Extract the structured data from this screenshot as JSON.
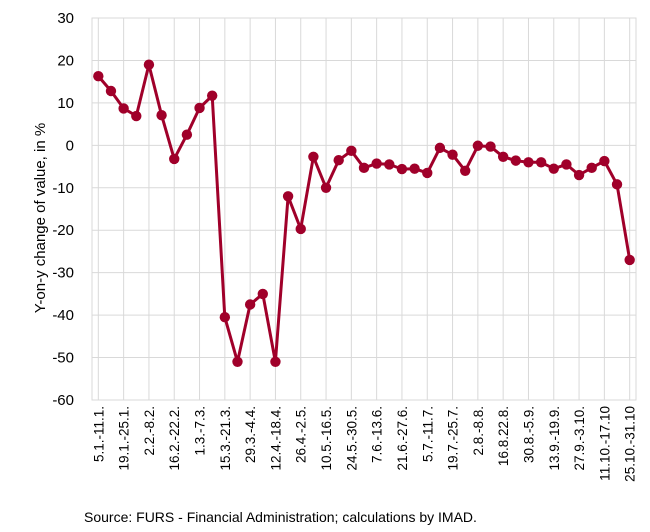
{
  "chart_data": {
    "type": "line",
    "ylabel": "Y-on-y change of value, in %",
    "ylim": [
      -60,
      30
    ],
    "yticks": [
      30,
      20,
      10,
      0,
      -10,
      -20,
      -30,
      -40,
      -50,
      -60
    ],
    "grid": true,
    "series_color": "#a0002a",
    "categories": [
      "5.1.-11.1.",
      "",
      "19.1.-25.1.",
      "",
      "2.2.-8.2.",
      "",
      "16.2.-22.2.",
      "",
      "1.3.-7.3.",
      "",
      "15.3.-21.3.",
      "",
      "29.3.-4.4.",
      "",
      "12.4.-18.4.",
      "",
      "26.4.-2.5.",
      "",
      "10.5.-16.5.",
      "",
      "24.5.-30.5.",
      "",
      "7.6.-13.6.",
      "",
      "21.6.-27.6.",
      "",
      "5.7.-11.7.",
      "",
      "19.7.-25.7.",
      "",
      "2.8.-8.8.",
      "",
      "16.8.22.8.",
      "",
      "30.8.-5.9.",
      "",
      "13.9.-19.9.",
      "",
      "27.9.-3.10.",
      "",
      "11.10.-17.10",
      "",
      "25.10.-31.10"
    ],
    "values": [
      16.3,
      12.8,
      8.7,
      6.9,
      19.0,
      7.1,
      -3.2,
      2.5,
      8.8,
      11.7,
      -40.5,
      -51.0,
      -37.5,
      -35.0,
      -51.0,
      -12.0,
      -19.7,
      -2.7,
      -10.0,
      -3.5,
      -1.3,
      -5.3,
      -4.3,
      -4.5,
      -5.6,
      -5.5,
      -6.5,
      -0.6,
      -2.2,
      -6.0,
      -0.1,
      -0.3,
      -2.7,
      -3.6,
      -4.0,
      -4.0,
      -5.5,
      -4.5,
      -7.0,
      -5.3,
      -3.7,
      -9.2,
      -27.0
    ]
  },
  "source": "Source: FURS - Financial Administration; calculations by IMAD."
}
